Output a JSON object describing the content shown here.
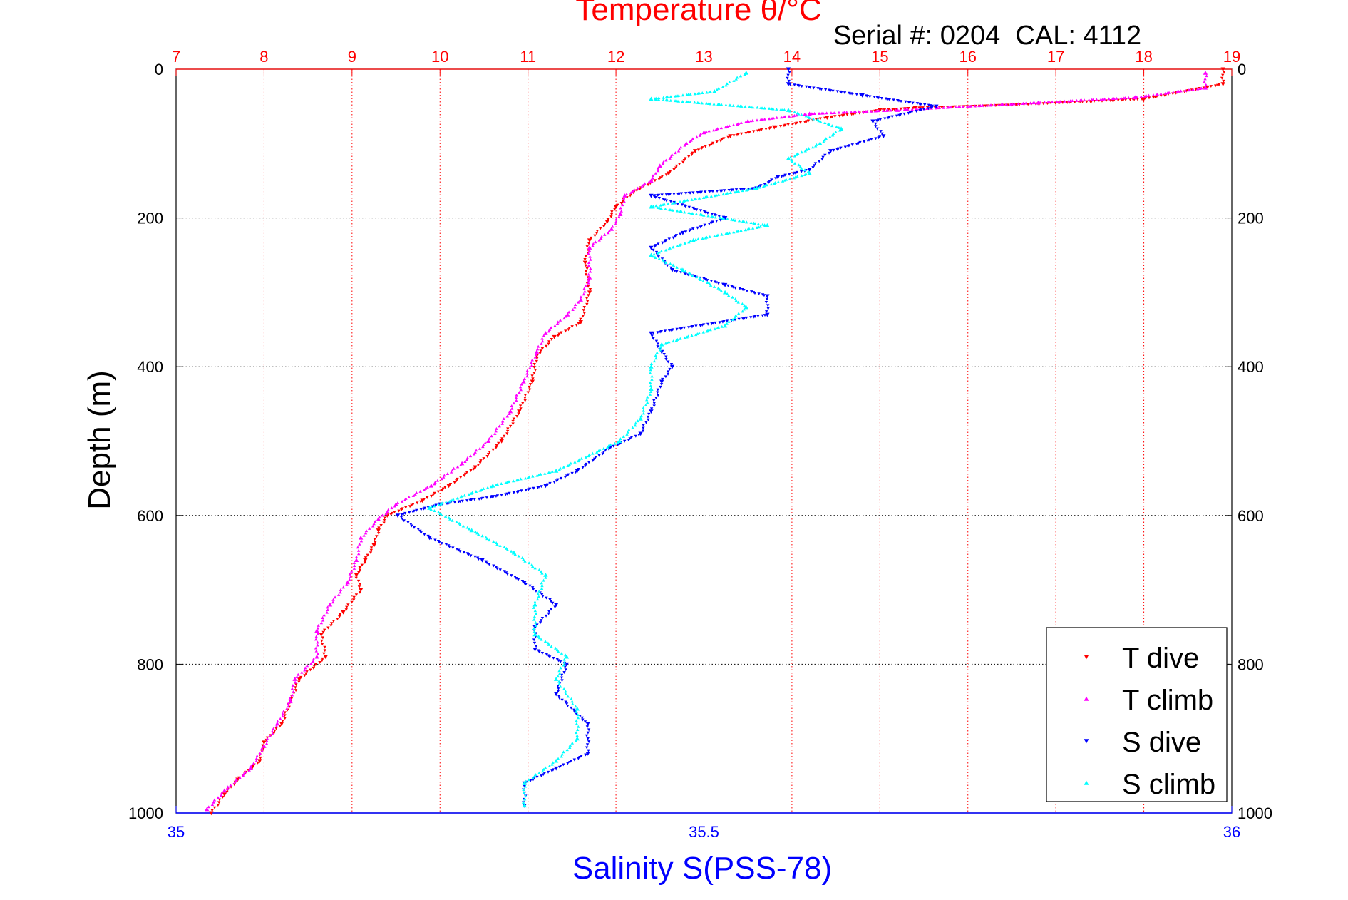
{
  "chart_data": {
    "type": "scatter",
    "title": "Temperature θ/°C",
    "subtitle": "Serial #: 0204  CAL: 4112",
    "ylabel": "Depth (m)",
    "xlabel_bottom": "Salinity S(PSS-78)",
    "top_axis": {
      "label": "Temperature θ/°C",
      "range": [
        7,
        19
      ],
      "ticks": [
        "7",
        "8",
        "9",
        "10",
        "11",
        "12",
        "13",
        "14",
        "15",
        "16",
        "17",
        "18",
        "19"
      ],
      "color": "#ff0000"
    },
    "bottom_axis": {
      "label": "Salinity S(PSS-78)",
      "range": [
        35,
        36
      ],
      "ticks": [
        "35",
        "35.5",
        "36"
      ],
      "color": "#0000ff"
    },
    "y_axis": {
      "range": [
        0,
        1000
      ],
      "reversed": true,
      "ticks": [
        "0",
        "200",
        "400",
        "600",
        "800",
        "1000"
      ]
    },
    "grid": true,
    "legend_position": "bottom-right",
    "series": [
      {
        "name": "T dive",
        "axis": "top",
        "color": "#ff0000",
        "marker": "triangle-down",
        "points": [
          [
            18.9,
            0
          ],
          [
            18.9,
            20
          ],
          [
            18.0,
            40
          ],
          [
            16.5,
            48
          ],
          [
            15.4,
            52
          ],
          [
            15.0,
            55
          ],
          [
            14.4,
            65
          ],
          [
            13.8,
            78
          ],
          [
            13.3,
            90
          ],
          [
            12.9,
            110
          ],
          [
            12.6,
            140
          ],
          [
            12.2,
            165
          ],
          [
            12.0,
            185
          ],
          [
            11.9,
            205
          ],
          [
            11.7,
            230
          ],
          [
            11.65,
            260
          ],
          [
            11.7,
            300
          ],
          [
            11.6,
            340
          ],
          [
            11.3,
            360
          ],
          [
            11.1,
            385
          ],
          [
            11.05,
            420
          ],
          [
            10.9,
            460
          ],
          [
            10.7,
            500
          ],
          [
            10.4,
            535
          ],
          [
            10.1,
            560
          ],
          [
            9.8,
            580
          ],
          [
            9.4,
            600
          ],
          [
            9.3,
            620
          ],
          [
            9.25,
            640
          ],
          [
            9.15,
            660
          ],
          [
            9.05,
            680
          ],
          [
            9.1,
            700
          ],
          [
            8.9,
            730
          ],
          [
            8.65,
            760
          ],
          [
            8.7,
            790
          ],
          [
            8.4,
            820
          ],
          [
            8.3,
            850
          ],
          [
            8.2,
            880
          ],
          [
            8.0,
            905
          ],
          [
            7.95,
            930
          ],
          [
            7.7,
            955
          ],
          [
            7.55,
            975
          ],
          [
            7.4,
            1000
          ]
        ]
      },
      {
        "name": "T climb",
        "axis": "top",
        "color": "#ff00ff",
        "marker": "triangle-up",
        "points": [
          [
            18.7,
            5
          ],
          [
            18.7,
            25
          ],
          [
            17.9,
            38
          ],
          [
            16.8,
            45
          ],
          [
            15.2,
            55
          ],
          [
            14.2,
            60
          ],
          [
            13.5,
            70
          ],
          [
            13.0,
            85
          ],
          [
            12.8,
            100
          ],
          [
            12.5,
            130
          ],
          [
            12.4,
            150
          ],
          [
            12.1,
            170
          ],
          [
            12.05,
            195
          ],
          [
            11.95,
            215
          ],
          [
            11.7,
            240
          ],
          [
            11.7,
            280
          ],
          [
            11.6,
            310
          ],
          [
            11.45,
            330
          ],
          [
            11.2,
            355
          ],
          [
            11.1,
            380
          ],
          [
            10.95,
            420
          ],
          [
            10.8,
            460
          ],
          [
            10.55,
            500
          ],
          [
            10.25,
            530
          ],
          [
            9.9,
            560
          ],
          [
            9.5,
            585
          ],
          [
            9.3,
            605
          ],
          [
            9.1,
            630
          ],
          [
            9.05,
            660
          ],
          [
            8.95,
            690
          ],
          [
            8.75,
            720
          ],
          [
            8.6,
            755
          ],
          [
            8.6,
            790
          ],
          [
            8.35,
            820
          ],
          [
            8.3,
            850
          ],
          [
            8.15,
            880
          ],
          [
            8.0,
            910
          ],
          [
            7.85,
            940
          ],
          [
            7.55,
            970
          ],
          [
            7.35,
            995
          ]
        ]
      },
      {
        "name": "S dive",
        "axis": "bottom",
        "color": "#0000ff",
        "marker": "triangle-down",
        "points": [
          [
            35.58,
            0
          ],
          [
            35.58,
            20
          ],
          [
            35.65,
            35
          ],
          [
            35.72,
            50
          ],
          [
            35.66,
            70
          ],
          [
            35.67,
            90
          ],
          [
            35.62,
            110
          ],
          [
            35.6,
            135
          ],
          [
            35.57,
            145
          ],
          [
            35.55,
            160
          ],
          [
            35.45,
            170
          ],
          [
            35.52,
            200
          ],
          [
            35.48,
            220
          ],
          [
            35.45,
            240
          ],
          [
            35.47,
            270
          ],
          [
            35.52,
            290
          ],
          [
            35.56,
            305
          ],
          [
            35.56,
            330
          ],
          [
            35.45,
            355
          ],
          [
            35.46,
            380
          ],
          [
            35.47,
            400
          ],
          [
            35.46,
            420
          ],
          [
            35.45,
            460
          ],
          [
            35.44,
            490
          ],
          [
            35.41,
            510
          ],
          [
            35.38,
            540
          ],
          [
            35.35,
            560
          ],
          [
            35.3,
            575
          ],
          [
            35.25,
            585
          ],
          [
            35.21,
            600
          ],
          [
            35.24,
            630
          ],
          [
            35.29,
            660
          ],
          [
            35.33,
            690
          ],
          [
            35.36,
            720
          ],
          [
            35.34,
            750
          ],
          [
            35.34,
            780
          ],
          [
            35.37,
            800
          ],
          [
            35.36,
            840
          ],
          [
            35.39,
            880
          ],
          [
            35.39,
            920
          ],
          [
            35.36,
            940
          ],
          [
            35.33,
            960
          ],
          [
            35.33,
            990
          ]
        ]
      },
      {
        "name": "S climb",
        "axis": "bottom",
        "color": "#00ffff",
        "marker": "triangle-up",
        "points": [
          [
            35.54,
            5
          ],
          [
            35.51,
            30
          ],
          [
            35.45,
            40
          ],
          [
            35.58,
            55
          ],
          [
            35.63,
            80
          ],
          [
            35.61,
            100
          ],
          [
            35.58,
            120
          ],
          [
            35.6,
            140
          ],
          [
            35.55,
            160
          ],
          [
            35.45,
            185
          ],
          [
            35.56,
            210
          ],
          [
            35.49,
            230
          ],
          [
            35.45,
            250
          ],
          [
            35.48,
            270
          ],
          [
            35.52,
            300
          ],
          [
            35.54,
            320
          ],
          [
            35.52,
            345
          ],
          [
            35.46,
            370
          ],
          [
            35.45,
            400
          ],
          [
            35.45,
            430
          ],
          [
            35.44,
            470
          ],
          [
            35.42,
            500
          ],
          [
            35.36,
            540
          ],
          [
            35.3,
            560
          ],
          [
            35.24,
            590
          ],
          [
            35.28,
            620
          ],
          [
            35.32,
            650
          ],
          [
            35.35,
            680
          ],
          [
            35.34,
            720
          ],
          [
            35.34,
            760
          ],
          [
            35.37,
            790
          ],
          [
            35.36,
            820
          ],
          [
            35.38,
            860
          ],
          [
            35.38,
            900
          ],
          [
            35.36,
            930
          ],
          [
            35.33,
            960
          ],
          [
            35.33,
            990
          ]
        ]
      }
    ]
  }
}
